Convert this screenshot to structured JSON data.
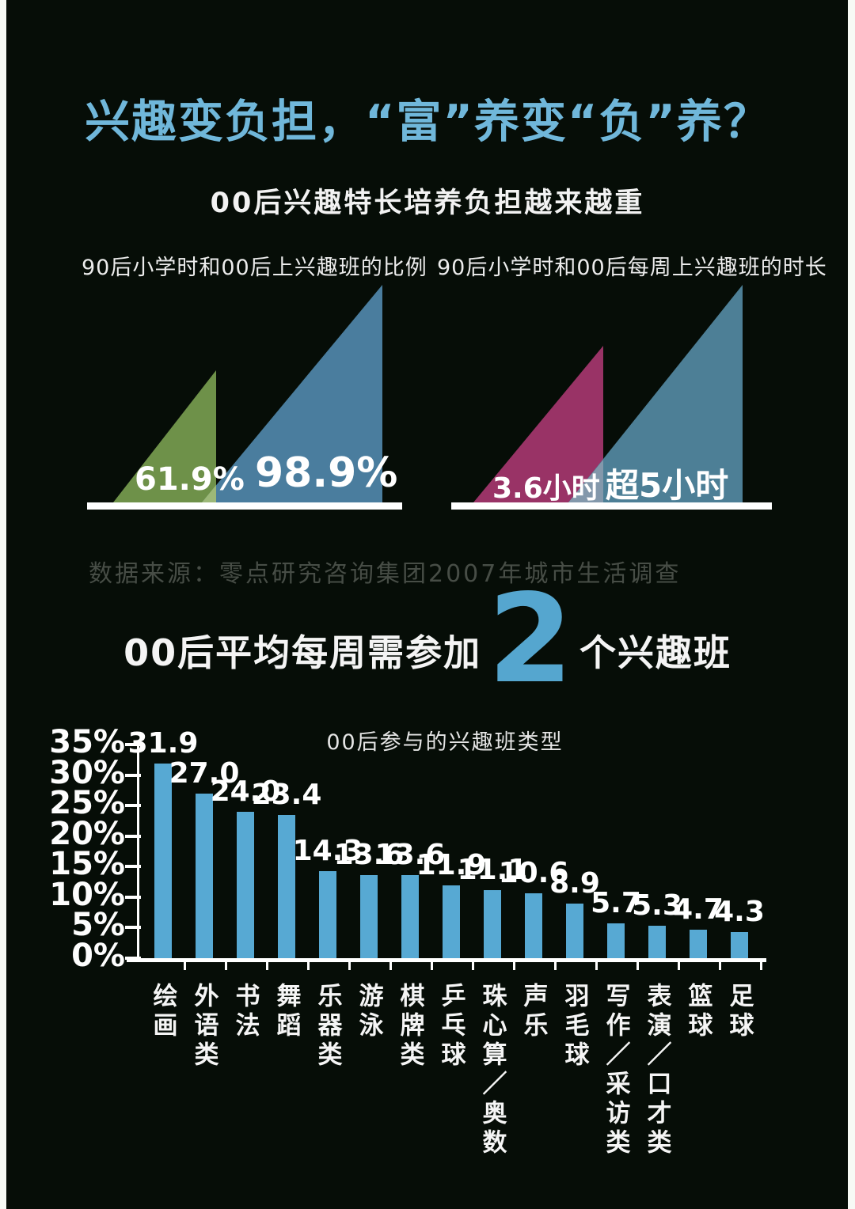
{
  "page": {
    "title": "兴趣变负担，“富”养变“负”养？",
    "subtitle": "00后兴趣特长培养负担越来越重",
    "source": "数据来源：零点研究咨询集团2007年城市生活调查"
  },
  "section2": {
    "prefix": "00后平均每周需参加",
    "big_number": "2",
    "suffix": "个兴趣班",
    "accent_color": "#55a6cf"
  },
  "colors": {
    "background": "#060d07",
    "title_blue": "#70b7da",
    "bar_blue": "#57a9d3",
    "green_triangle": "#6e9149",
    "blue_triangle_left": "#4a7d9e",
    "magenta_triangle": "#993366",
    "blue_triangle_right": "#4d7f96",
    "white": "#ffffff"
  },
  "chart_data": [
    {
      "type": "area",
      "shape": "triangle-comparison",
      "title": "90后小学时和00后上兴趣班的比例",
      "values": [
        61.9,
        98.9
      ],
      "labels": [
        "61.9%",
        "98.9%"
      ],
      "colors": [
        "#6e9149",
        "#4a7d9e"
      ],
      "unit": "%"
    },
    {
      "type": "area",
      "shape": "triangle-comparison",
      "title": "90后小学时和00后每周上兴趣班的时长",
      "values": [
        3.6,
        5
      ],
      "labels": [
        "3.6小时",
        "超5小时"
      ],
      "colors": [
        "#993366",
        "#4d7f96"
      ],
      "unit": "小时"
    },
    {
      "type": "bar",
      "title": "00后参与的兴趣班类型",
      "categories": [
        "绘画",
        "外语类",
        "书法",
        "舞蹈",
        "乐器类",
        "游泳",
        "棋牌类",
        "乒乓球",
        "珠心算／奥数",
        "声乐",
        "羽毛球",
        "写作／采访类",
        "表演／口才类",
        "篮球",
        "足球"
      ],
      "values": [
        31.9,
        27.0,
        24.0,
        23.4,
        14.3,
        13.6,
        13.6,
        11.9,
        11.1,
        10.6,
        8.9,
        5.7,
        5.3,
        4.7,
        4.3
      ],
      "labels": [
        "31.9",
        "27.0",
        "24.0",
        "23.4",
        "14.3",
        "13.6",
        "13.6",
        "11.9",
        "11.1",
        "10.6",
        "8.9",
        "5.7",
        "5.3",
        "4.7",
        "4.3"
      ],
      "ylabel": "",
      "ylim": [
        0,
        35
      ],
      "yticks": [
        "35%",
        "30%",
        "25%",
        "20%",
        "15%",
        "10%",
        "5%",
        "0%"
      ],
      "grid": "off",
      "legend": "none",
      "bar_color": "#57a9d3"
    }
  ]
}
